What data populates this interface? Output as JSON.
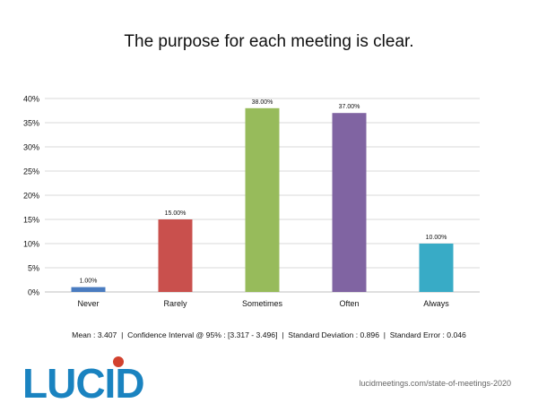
{
  "chart_data": {
    "type": "bar",
    "title": "The purpose for each meeting is clear.",
    "xlabel": "",
    "ylabel": "",
    "categories": [
      "Never",
      "Rarely",
      "Sometimes",
      "Often",
      "Always"
    ],
    "values": [
      1.0,
      15.0,
      38.0,
      37.0,
      10.0
    ],
    "data_labels": [
      "1.00%",
      "15.00%",
      "38.00%",
      "37.00%",
      "10.00%"
    ],
    "colors": [
      "#4a7cc0",
      "#c9504d",
      "#97bb5b",
      "#8064a2",
      "#38abc6"
    ],
    "ylim": [
      0,
      40
    ],
    "yticks": [
      0,
      5,
      10,
      15,
      20,
      25,
      30,
      35,
      40
    ],
    "ytick_labels": [
      "0%",
      "5%",
      "10%",
      "15%",
      "20%",
      "25%",
      "30%",
      "35%",
      "40%"
    ],
    "grid": true,
    "legend": "none"
  },
  "stats_line": "Mean : 3.407  |  Confidence Interval @ 95% : [3.317 - 3.496]  |  Standard Deviation : 0.896  |  Standard Error : 0.046",
  "logo": {
    "text": "LUCID",
    "text_color": "#1a83c0",
    "dot_color": "#d2412e"
  },
  "source": "lucidmeetings.com/state-of-meetings-2020"
}
